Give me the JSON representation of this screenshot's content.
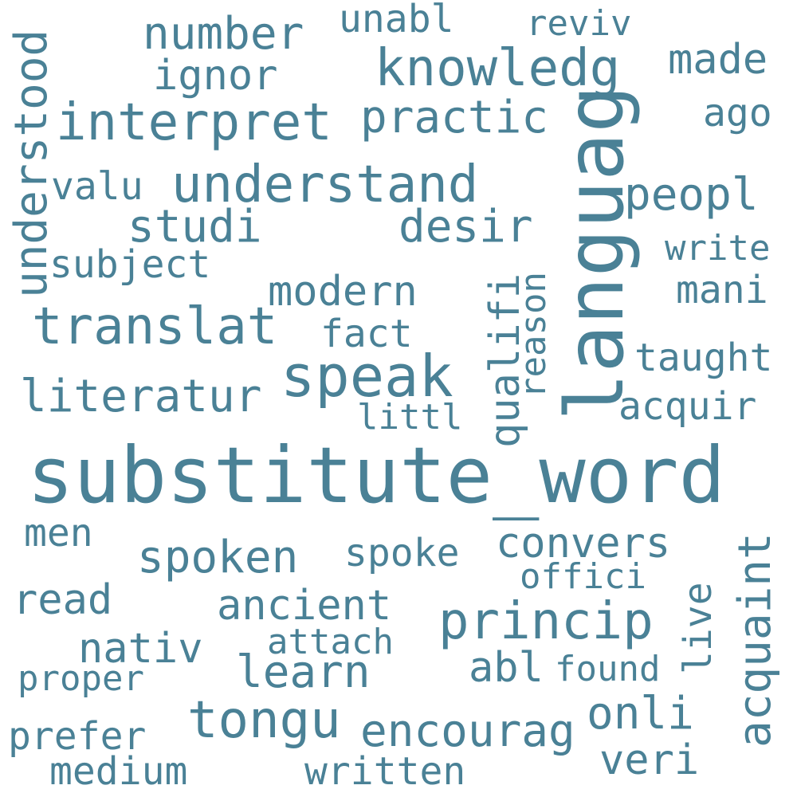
{
  "cloud": {
    "color": "#4a8196",
    "words": {
      "substitute_word": "substitute_word",
      "languag": "languag",
      "speak": "speak",
      "knowledg": "knowledg",
      "interpret": "interpret",
      "understand": "understand",
      "translat": "translat",
      "princip": "princip",
      "tongu": "tongu",
      "understood": "understood",
      "number": "number",
      "practic": "practic",
      "spoken": "spoken",
      "learn": "learn",
      "literatur": "literatur",
      "studi": "studi",
      "desir": "desir",
      "peopl": "peopl",
      "made": "made",
      "encourag": "encourag",
      "onli": "onli",
      "acquaint": "acquaint",
      "ancient": "ancient",
      "convers": "convers",
      "modern": "modern",
      "ignor": "ignor",
      "nativ": "nativ",
      "read": "read",
      "veri": "veri",
      "subject": "subject",
      "mani": "mani",
      "taught": "taught",
      "acquir": "acquir",
      "unabl": "unabl",
      "qualifi": "qualifi",
      "medium": "medium",
      "written": "written",
      "prefer": "prefer",
      "abl": "abl",
      "spoke": "spoke",
      "fact": "fact",
      "valu": "valu",
      "ago": "ago",
      "men": "men",
      "attach": "attach",
      "live": "live",
      "reviv": "reviv",
      "write": "write",
      "reason": "reason",
      "littl": "littl",
      "offici": "offici",
      "found": "found",
      "proper": "proper"
    }
  }
}
